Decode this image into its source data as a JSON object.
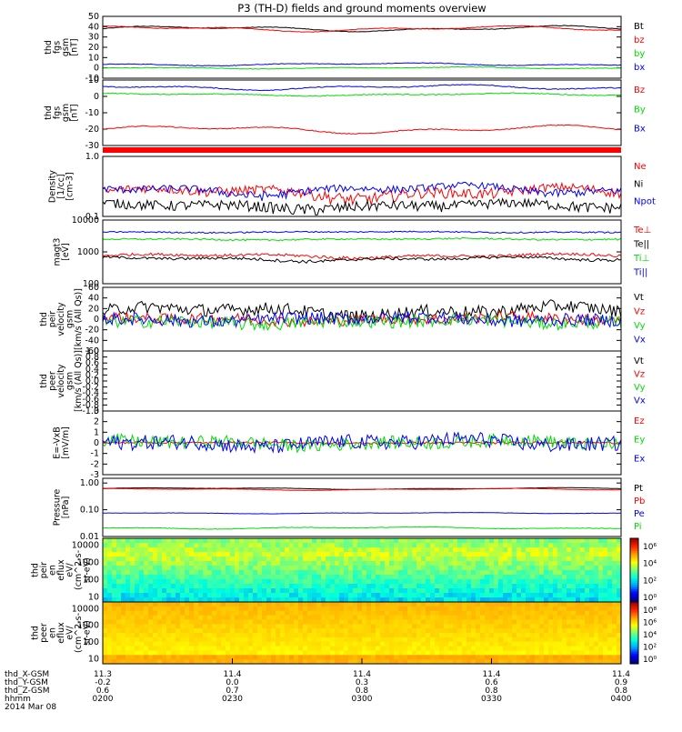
{
  "title": "P3 (TH-D) fields and ground moments overview",
  "date_label": "2014 Mar 08",
  "colors": {
    "black": "#000000",
    "red": "#ff0000",
    "green": "#00dd00",
    "blue": "#0000ff"
  },
  "chart_data": [
    {
      "id": "p1",
      "type": "line",
      "ylabel": [
        "thd",
        "fgs",
        "gsm",
        "[nT]"
      ],
      "ylim": [
        -10,
        50
      ],
      "yticks": [
        "50",
        "40",
        "30",
        "20",
        "10",
        "0",
        "-10"
      ],
      "series": [
        {
          "name": "Bt",
          "color": "#000000",
          "base": 38,
          "wave": 3,
          "noise": 0.3
        },
        {
          "name": "bz",
          "color": "#ff0000",
          "base": 38,
          "wave": 3,
          "noise": 0.3
        },
        {
          "name": "by",
          "color": "#00dd00",
          "base": 0,
          "wave": 1,
          "noise": 0.3
        },
        {
          "name": "bx",
          "color": "#0000ff",
          "base": 3.5,
          "wave": 1.5,
          "noise": 0.3
        }
      ]
    },
    {
      "id": "p2",
      "type": "line",
      "ylabel": [
        "thd",
        "fgs",
        "gsm",
        "[nT]"
      ],
      "ylim": [
        -35,
        10
      ],
      "yticks": [
        "10",
        "0",
        "-10",
        "-20",
        "-30"
      ],
      "series": [
        {
          "name": "Bz",
          "color": "#ff0000",
          "base": -24,
          "wave": 3,
          "noise": 0.3
        },
        {
          "name": "By",
          "color": "#00dd00",
          "base": 0,
          "wave": 1,
          "noise": 0.3
        },
        {
          "name": "Bx",
          "color": "#0000ff",
          "base": 5,
          "wave": 2,
          "noise": 0.3
        }
      ]
    },
    {
      "id": "p3",
      "type": "line",
      "scale": "log",
      "ylabel": [
        "Density",
        "[1/cc]",
        "[cm-3]"
      ],
      "ylim": [
        0.1,
        1.0
      ],
      "yticks": [
        "1.0",
        "0.1"
      ],
      "series": [
        {
          "name": "Ne",
          "color": "#ff0000",
          "base": 0.25,
          "wave": 0.06,
          "noise": 0.05
        },
        {
          "name": "Ni",
          "color": "#000000",
          "base": 0.15,
          "wave": 0.02,
          "noise": 0.03
        },
        {
          "name": "Npot",
          "color": "#0000ff",
          "base": 0.28,
          "wave": 0.06,
          "noise": 0.04
        }
      ]
    },
    {
      "id": "p4",
      "type": "line",
      "scale": "log",
      "ylabel": [
        "magt3",
        "[eV]"
      ],
      "ylim": [
        100,
        10000
      ],
      "yticks": [
        "10000",
        "1000",
        "100"
      ],
      "series": [
        {
          "name": "Te⊥",
          "color": "#ff0000",
          "base": 750,
          "wave": 120,
          "noise": 80
        },
        {
          "name": "Te||",
          "color": "#000000",
          "base": 600,
          "wave": 100,
          "noise": 60
        },
        {
          "name": "Ti⊥",
          "color": "#00dd00",
          "base": 2500,
          "wave": 150,
          "noise": 150
        },
        {
          "name": "Ti||",
          "color": "#0000ff",
          "base": 4200,
          "wave": 200,
          "noise": 200
        }
      ]
    },
    {
      "id": "p5",
      "type": "line",
      "ylabel": [
        "thd",
        "peir",
        "velocity",
        "gsm",
        "[km/s (All Qs)]"
      ],
      "ylim": [
        -60,
        60
      ],
      "yticks": [
        "60",
        "40",
        "20",
        "0",
        "-20",
        "-40",
        "-60"
      ],
      "series": [
        {
          "name": "Vt",
          "color": "#000000",
          "base": 15,
          "wave": 10,
          "noise": 12
        },
        {
          "name": "Vz",
          "color": "#ff0000",
          "base": 0,
          "wave": 5,
          "noise": 10
        },
        {
          "name": "Vy",
          "color": "#00dd00",
          "base": -5,
          "wave": 5,
          "noise": 12
        },
        {
          "name": "Vx",
          "color": "#0000ff",
          "base": 0,
          "wave": 5,
          "noise": 12
        }
      ]
    },
    {
      "id": "p6",
      "type": "line",
      "ylabel": [
        "thd",
        "peer",
        "velocity",
        "gsm",
        "[km/s (All Qs)]"
      ],
      "ylim": [
        -1,
        1
      ],
      "yticks": [
        "1.0",
        "0.8",
        "0.6",
        "0.4",
        "0.2",
        "0.0",
        "-0.2",
        "-0.4",
        "-0.6",
        "-0.8",
        "-1.0"
      ],
      "series": [
        {
          "name": "Vt",
          "color": "#000000"
        },
        {
          "name": "Vz",
          "color": "#ff0000"
        },
        {
          "name": "Vy",
          "color": "#00dd00"
        },
        {
          "name": "Vx",
          "color": "#0000ff"
        }
      ]
    },
    {
      "id": "p7",
      "type": "line",
      "ylabel": [
        "E=-VxB",
        "[mV/m]"
      ],
      "ylim": [
        -3,
        3
      ],
      "yticks": [
        "3",
        "2",
        "1",
        "0",
        "-1",
        "-2",
        "-3"
      ],
      "series": [
        {
          "name": "Ez",
          "color": "#ff0000",
          "base": 0,
          "wave": 0.05,
          "noise": 0.1
        },
        {
          "name": "Ey",
          "color": "#00dd00",
          "base": 0,
          "wave": 0.3,
          "noise": 0.6
        },
        {
          "name": "Ex",
          "color": "#0000ff",
          "base": 0,
          "wave": 0.4,
          "noise": 0.7
        }
      ]
    },
    {
      "id": "p8",
      "type": "line",
      "scale": "log",
      "ylabel": [
        "Pressure",
        "[nPa]"
      ],
      "ylim": [
        0.01,
        1.5
      ],
      "yticks": [
        "1.00",
        "0.10",
        "0.01"
      ],
      "series": [
        {
          "name": "Pt",
          "color": "#000000",
          "base": 0.62,
          "wave": 0.05,
          "noise": 0.005
        },
        {
          "name": "Pb",
          "color": "#ff0000",
          "base": 0.58,
          "wave": 0.05,
          "noise": 0.005
        },
        {
          "name": "Pe",
          "color": "#0000ff",
          "base": 0.075,
          "wave": 0.004,
          "noise": 0.001
        },
        {
          "name": "Pi",
          "color": "#00dd00",
          "base": 0.021,
          "wave": 0.002,
          "noise": 0.0005
        }
      ]
    },
    {
      "id": "p9",
      "type": "heatmap",
      "ylabel": [
        "thd",
        "peir",
        "en",
        "eflux",
        "eV/",
        "(cm^2-s-",
        "sr-eV)"
      ],
      "ylim": [
        5,
        25000
      ],
      "yticks": [
        "10000",
        "1000",
        "100",
        "10"
      ],
      "colorbar": [
        "10⁶",
        "10⁴",
        "10²",
        "10⁰"
      ]
    },
    {
      "id": "p10",
      "type": "heatmap",
      "ylabel": [
        "thd",
        "peer",
        "en",
        "eflux",
        "eV/",
        "(cm^2-s-",
        "sr-eV)"
      ],
      "ylim": [
        5,
        25000
      ],
      "yticks": [
        "10000",
        "1000",
        "100",
        "10"
      ],
      "colorbar": [
        "10⁸",
        "10⁶",
        "10⁴",
        "10²",
        "10⁰"
      ]
    }
  ],
  "x_axis": {
    "label_rows": [
      "thd_X-GSM",
      "thd_Y-GSM",
      "thd_Z-GSM",
      "hhmm"
    ],
    "columns": [
      [
        "11.3",
        "-0.2",
        "0.6",
        "0200"
      ],
      [
        "11.4",
        "0.0",
        "0.7",
        "0230"
      ],
      [
        "11.4",
        "0.3",
        "0.8",
        "0300"
      ],
      [
        "11.4",
        "0.6",
        "0.8",
        "0330"
      ],
      [
        "11.4",
        "0.9",
        "0.8",
        "0400"
      ]
    ]
  }
}
